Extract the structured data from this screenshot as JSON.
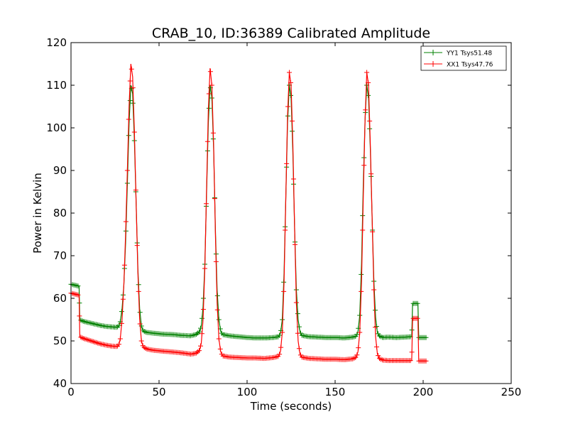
{
  "chart_data": {
    "type": "line",
    "title": "CRAB_10, ID:36389 Calibrated Amplitude",
    "xlabel": "Time (seconds)",
    "ylabel": "Power in Kelvin",
    "xlim": [
      0,
      250
    ],
    "ylim": [
      40,
      120
    ],
    "xticks": [
      0,
      50,
      100,
      150,
      200,
      250
    ],
    "yticks": [
      40,
      50,
      60,
      70,
      80,
      90,
      100,
      110,
      120
    ],
    "grid": false,
    "legend_position": "upper-right",
    "series": [
      {
        "name": "YY1 Tsys51.48",
        "color": "#008000",
        "marker": "+",
        "points": [
          [
            0,
            63.3
          ],
          [
            2,
            63.1
          ],
          [
            4,
            62.9
          ],
          [
            4.6,
            62.8
          ],
          [
            5,
            55.0
          ],
          [
            7,
            54.6
          ],
          [
            10,
            54.3
          ],
          [
            13,
            54.0
          ],
          [
            16,
            53.7
          ],
          [
            20,
            53.4
          ],
          [
            23,
            53.3
          ],
          [
            26,
            53.2
          ],
          [
            27,
            53.4
          ],
          [
            28,
            54.5
          ],
          [
            29,
            57.5
          ],
          [
            30,
            63
          ],
          [
            31,
            73
          ],
          [
            32,
            87
          ],
          [
            33,
            101
          ],
          [
            34,
            110
          ],
          [
            35,
            108
          ],
          [
            36,
            97
          ],
          [
            37,
            82
          ],
          [
            38,
            67
          ],
          [
            39,
            57.5
          ],
          [
            40,
            53.5
          ],
          [
            41,
            52.3
          ],
          [
            43,
            52.0
          ],
          [
            47,
            51.8
          ],
          [
            52,
            51.6
          ],
          [
            58,
            51.5
          ],
          [
            63,
            51.3
          ],
          [
            68,
            51.2
          ],
          [
            71,
            51.5
          ],
          [
            73,
            52.2
          ],
          [
            74,
            53.5
          ],
          [
            75,
            58
          ],
          [
            76,
            68
          ],
          [
            77,
            85
          ],
          [
            78,
            101
          ],
          [
            79,
            110
          ],
          [
            80,
            107
          ],
          [
            81,
            95
          ],
          [
            82,
            76
          ],
          [
            83,
            62
          ],
          [
            84,
            55
          ],
          [
            85,
            52.3
          ],
          [
            86,
            51.5
          ],
          [
            90,
            51.2
          ],
          [
            95,
            51.0
          ],
          [
            100,
            50.8
          ],
          [
            105,
            50.7
          ],
          [
            110,
            50.7
          ],
          [
            115,
            50.8
          ],
          [
            118,
            51.0
          ],
          [
            119,
            51.8
          ],
          [
            120,
            55
          ],
          [
            121,
            66
          ],
          [
            122,
            84
          ],
          [
            123,
            101
          ],
          [
            124,
            110
          ],
          [
            125,
            107
          ],
          [
            126,
            94
          ],
          [
            127,
            76
          ],
          [
            128,
            62
          ],
          [
            129,
            55
          ],
          [
            130,
            52.2
          ],
          [
            131,
            51.3
          ],
          [
            135,
            51.0
          ],
          [
            140,
            50.9
          ],
          [
            145,
            50.8
          ],
          [
            150,
            50.8
          ],
          [
            155,
            50.7
          ],
          [
            160,
            50.9
          ],
          [
            162,
            51.1
          ],
          [
            163,
            52.2
          ],
          [
            164,
            56
          ],
          [
            165,
            68
          ],
          [
            166,
            87
          ],
          [
            167,
            102
          ],
          [
            168,
            110
          ],
          [
            169,
            107
          ],
          [
            170,
            95
          ],
          [
            171,
            79
          ],
          [
            172,
            64
          ],
          [
            173,
            55.5
          ],
          [
            174,
            52
          ],
          [
            175,
            51.2
          ],
          [
            177,
            50.8
          ],
          [
            180,
            50.9
          ],
          [
            185,
            50.8
          ],
          [
            190,
            50.9
          ],
          [
            193.5,
            51.0
          ],
          [
            194,
            58.8
          ],
          [
            197,
            58.8
          ],
          [
            197.5,
            50.8
          ],
          [
            202,
            50.8
          ]
        ]
      },
      {
        "name": "XX1 Tsys47.76",
        "color": "#ff0000",
        "marker": "+",
        "points": [
          [
            0,
            61.2
          ],
          [
            2,
            61.0
          ],
          [
            4,
            60.8
          ],
          [
            4.6,
            60.7
          ],
          [
            5,
            51.0
          ],
          [
            7,
            50.6
          ],
          [
            10,
            50.2
          ],
          [
            13,
            49.8
          ],
          [
            16,
            49.4
          ],
          [
            20,
            49.0
          ],
          [
            23,
            48.8
          ],
          [
            26,
            48.7
          ],
          [
            27,
            48.9
          ],
          [
            28,
            50.5
          ],
          [
            29,
            55
          ],
          [
            30,
            63
          ],
          [
            31,
            75
          ],
          [
            32,
            90
          ],
          [
            33,
            105
          ],
          [
            34,
            115
          ],
          [
            35,
            112
          ],
          [
            36,
            99
          ],
          [
            37,
            82
          ],
          [
            38,
            66
          ],
          [
            39,
            55
          ],
          [
            40,
            50
          ],
          [
            41,
            48.6
          ],
          [
            43,
            48.1
          ],
          [
            47,
            47.8
          ],
          [
            52,
            47.6
          ],
          [
            58,
            47.4
          ],
          [
            63,
            47.2
          ],
          [
            68,
            46.9
          ],
          [
            71,
            47.1
          ],
          [
            73,
            47.8
          ],
          [
            74,
            49.5
          ],
          [
            75,
            55
          ],
          [
            76,
            67
          ],
          [
            77,
            86
          ],
          [
            78,
            104
          ],
          [
            79,
            114
          ],
          [
            80,
            110
          ],
          [
            81,
            96
          ],
          [
            82,
            75
          ],
          [
            83,
            59
          ],
          [
            84,
            50.5
          ],
          [
            85,
            47.5
          ],
          [
            86,
            46.5
          ],
          [
            90,
            46.2
          ],
          [
            95,
            46.1
          ],
          [
            100,
            46.0
          ],
          [
            105,
            46.0
          ],
          [
            110,
            45.9
          ],
          [
            115,
            46.1
          ],
          [
            118,
            46.4
          ],
          [
            119,
            47.6
          ],
          [
            120,
            52
          ],
          [
            121,
            64
          ],
          [
            122,
            84
          ],
          [
            123,
            103
          ],
          [
            124,
            113
          ],
          [
            125,
            110
          ],
          [
            126,
            96
          ],
          [
            127,
            76
          ],
          [
            128,
            59
          ],
          [
            129,
            50
          ],
          [
            130,
            47
          ],
          [
            131,
            46.2
          ],
          [
            135,
            45.9
          ],
          [
            140,
            45.8
          ],
          [
            145,
            45.7
          ],
          [
            150,
            45.7
          ],
          [
            155,
            45.6
          ],
          [
            160,
            45.8
          ],
          [
            162,
            46.2
          ],
          [
            163,
            47.5
          ],
          [
            164,
            52
          ],
          [
            165,
            64
          ],
          [
            166,
            84
          ],
          [
            167,
            102
          ],
          [
            168,
            113
          ],
          [
            169,
            110
          ],
          [
            170,
            96
          ],
          [
            171,
            79
          ],
          [
            172,
            62
          ],
          [
            173,
            51
          ],
          [
            174,
            47
          ],
          [
            175,
            45.9
          ],
          [
            177,
            45.5
          ],
          [
            180,
            45.4
          ],
          [
            185,
            45.4
          ],
          [
            190,
            45.4
          ],
          [
            193.5,
            45.4
          ],
          [
            194,
            55.3
          ],
          [
            197,
            55.3
          ],
          [
            197.5,
            45.3
          ],
          [
            202,
            45.3
          ]
        ]
      }
    ]
  }
}
